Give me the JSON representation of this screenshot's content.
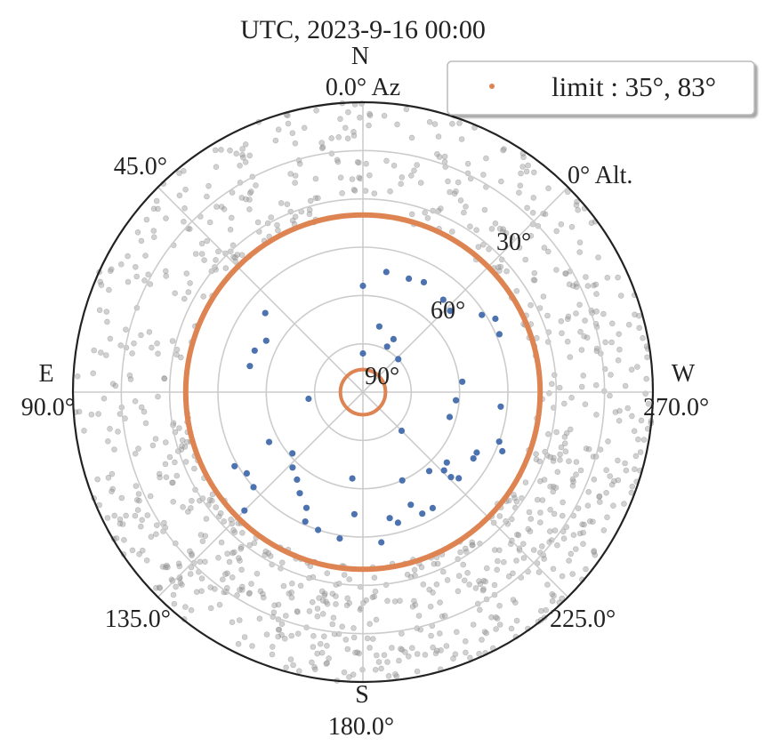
{
  "title": "UTC, 2023-9-16 00:00",
  "legend": {
    "label": "limit : 35°, 83°",
    "marker_color": "#dd8452",
    "placement": "top-right"
  },
  "chart_data": {
    "type": "scatter",
    "projection": "polar-sky",
    "title": "UTC, 2023-9-16 00:00",
    "radial_axis": "altitude",
    "alt_range": [
      0,
      90
    ],
    "alt_ticks": [
      {
        "value": 0,
        "label": "0° Alt."
      },
      {
        "value": 30,
        "label": "30°"
      },
      {
        "value": 60,
        "label": "60°"
      },
      {
        "value": 90,
        "label": "90°"
      }
    ],
    "alt_gridlines": [
      0,
      15,
      30,
      45,
      60,
      75,
      90
    ],
    "az_ticks": [
      {
        "az": 0,
        "label": "0.0° Az",
        "cardinal": "N"
      },
      {
        "az": 45,
        "label": "45.0°"
      },
      {
        "az": 90,
        "label": "90.0°",
        "cardinal": "E"
      },
      {
        "az": 135,
        "label": "135.0°"
      },
      {
        "az": 180,
        "label": "180.0°",
        "cardinal": "S"
      },
      {
        "az": 225,
        "label": "225.0°"
      },
      {
        "az": 270,
        "label": "270.0°",
        "cardinal": "W"
      },
      {
        "az": 315,
        "label": ""
      }
    ],
    "grid": true,
    "series": [
      {
        "kind": "limit",
        "name": "limit : 35°, 83°",
        "color": "#dd8452",
        "circles_alt": [
          35,
          83
        ]
      },
      {
        "kind": "selected",
        "color": "#4c72b0",
        "points": [
          {
            "alt": 57,
            "az": 0
          },
          {
            "alt": 52,
            "az": 349
          },
          {
            "alt": 52,
            "az": 338
          },
          {
            "alt": 51,
            "az": 331
          },
          {
            "alt": 52,
            "az": 319
          },
          {
            "alt": 53,
            "az": 313
          },
          {
            "alt": 43,
            "az": 299
          },
          {
            "alt": 46,
            "az": 303
          },
          {
            "alt": 44,
            "az": 293
          },
          {
            "alt": 51,
            "az": 51
          },
          {
            "alt": 56,
            "az": 62
          },
          {
            "alt": 54,
            "az": 69
          },
          {
            "alt": 54,
            "az": 77
          },
          {
            "alt": 69,
            "az": 346
          },
          {
            "alt": 74,
            "az": 332
          },
          {
            "alt": 75,
            "az": 313
          },
          {
            "alt": 78,
            "az": 0
          },
          {
            "alt": 71,
            "az": 330
          },
          {
            "alt": 59,
            "az": 276
          },
          {
            "alt": 61,
            "az": 265
          },
          {
            "alt": 62,
            "az": 254
          },
          {
            "alt": 47,
            "az": 264
          },
          {
            "alt": 45,
            "az": 250
          },
          {
            "alt": 73,
            "az": 225
          },
          {
            "alt": 73,
            "az": 97
          },
          {
            "alt": 57,
            "az": 118
          },
          {
            "alt": 58,
            "az": 137
          },
          {
            "alt": 56,
            "az": 143
          },
          {
            "alt": 44,
            "az": 120
          },
          {
            "alt": 46,
            "az": 125
          },
          {
            "alt": 45,
            "az": 131
          },
          {
            "alt": 53,
            "az": 148
          },
          {
            "alt": 50,
            "az": 154
          },
          {
            "alt": 46,
            "az": 156
          },
          {
            "alt": 45,
            "az": 162
          },
          {
            "alt": 44,
            "az": 171
          },
          {
            "alt": 43,
            "az": 187
          },
          {
            "alt": 50,
            "az": 192
          },
          {
            "alt": 48,
            "az": 195
          },
          {
            "alt": 52,
            "az": 203
          },
          {
            "alt": 60,
            "az": 204
          },
          {
            "alt": 48,
            "az": 206
          },
          {
            "alt": 48,
            "az": 211
          },
          {
            "alt": 58,
            "az": 220
          },
          {
            "alt": 55,
            "az": 226
          },
          {
            "alt": 52,
            "az": 226
          },
          {
            "alt": 50,
            "az": 228
          },
          {
            "alt": 56,
            "az": 230
          },
          {
            "alt": 50,
            "az": 239
          },
          {
            "alt": 50,
            "az": 242
          },
          {
            "alt": 43,
            "az": 247
          },
          {
            "alt": 61,
            "az": 131
          },
          {
            "alt": 38,
            "az": 135
          },
          {
            "alt": 63,
            "az": 173
          },
          {
            "alt": 52,
            "az": 176
          }
        ]
      },
      {
        "kind": "background",
        "color": "#aaaaaa",
        "note_ref": "grey points are stars outside the limit (approx. density)"
      }
    ]
  }
}
